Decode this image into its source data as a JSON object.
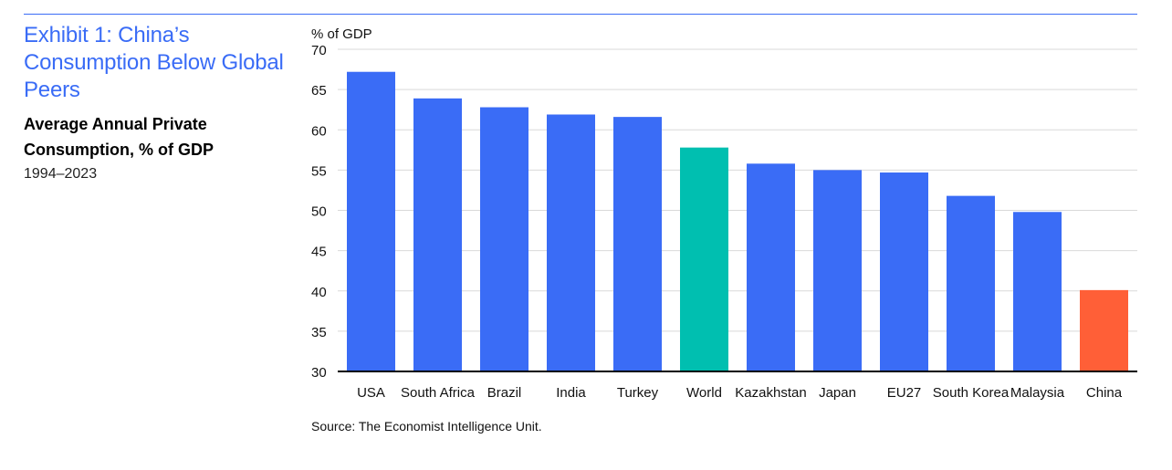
{
  "panel": {
    "title": "Exhibit 1: China’s Consumption Below Global Peers",
    "subtitle": "Average Annual Private Consumption, % of GDP",
    "period": "1994–2023"
  },
  "source": "Source: The Economist Intelligence Unit.",
  "colors": {
    "default_bar": "#3a6cf6",
    "world_bar": "#00bfb0",
    "china_bar": "#ff5f37",
    "accent_text": "#3a6cf6"
  },
  "chart_data": {
    "type": "bar",
    "ylabel": "% of GDP",
    "ylim": [
      30,
      70
    ],
    "yticks": [
      30,
      35,
      40,
      45,
      50,
      55,
      60,
      65,
      70
    ],
    "grid": true,
    "categories": [
      "USA",
      "South Africa",
      "Brazil",
      "India",
      "Turkey",
      "World",
      "Kazakhstan",
      "Japan",
      "EU27",
      "South Korea",
      "Malaysia",
      "China"
    ],
    "values": [
      67.2,
      63.9,
      62.8,
      61.9,
      61.6,
      57.8,
      55.8,
      55.0,
      54.7,
      51.8,
      49.8,
      40.1
    ],
    "highlight": {
      "World": "world_bar",
      "China": "china_bar"
    }
  }
}
